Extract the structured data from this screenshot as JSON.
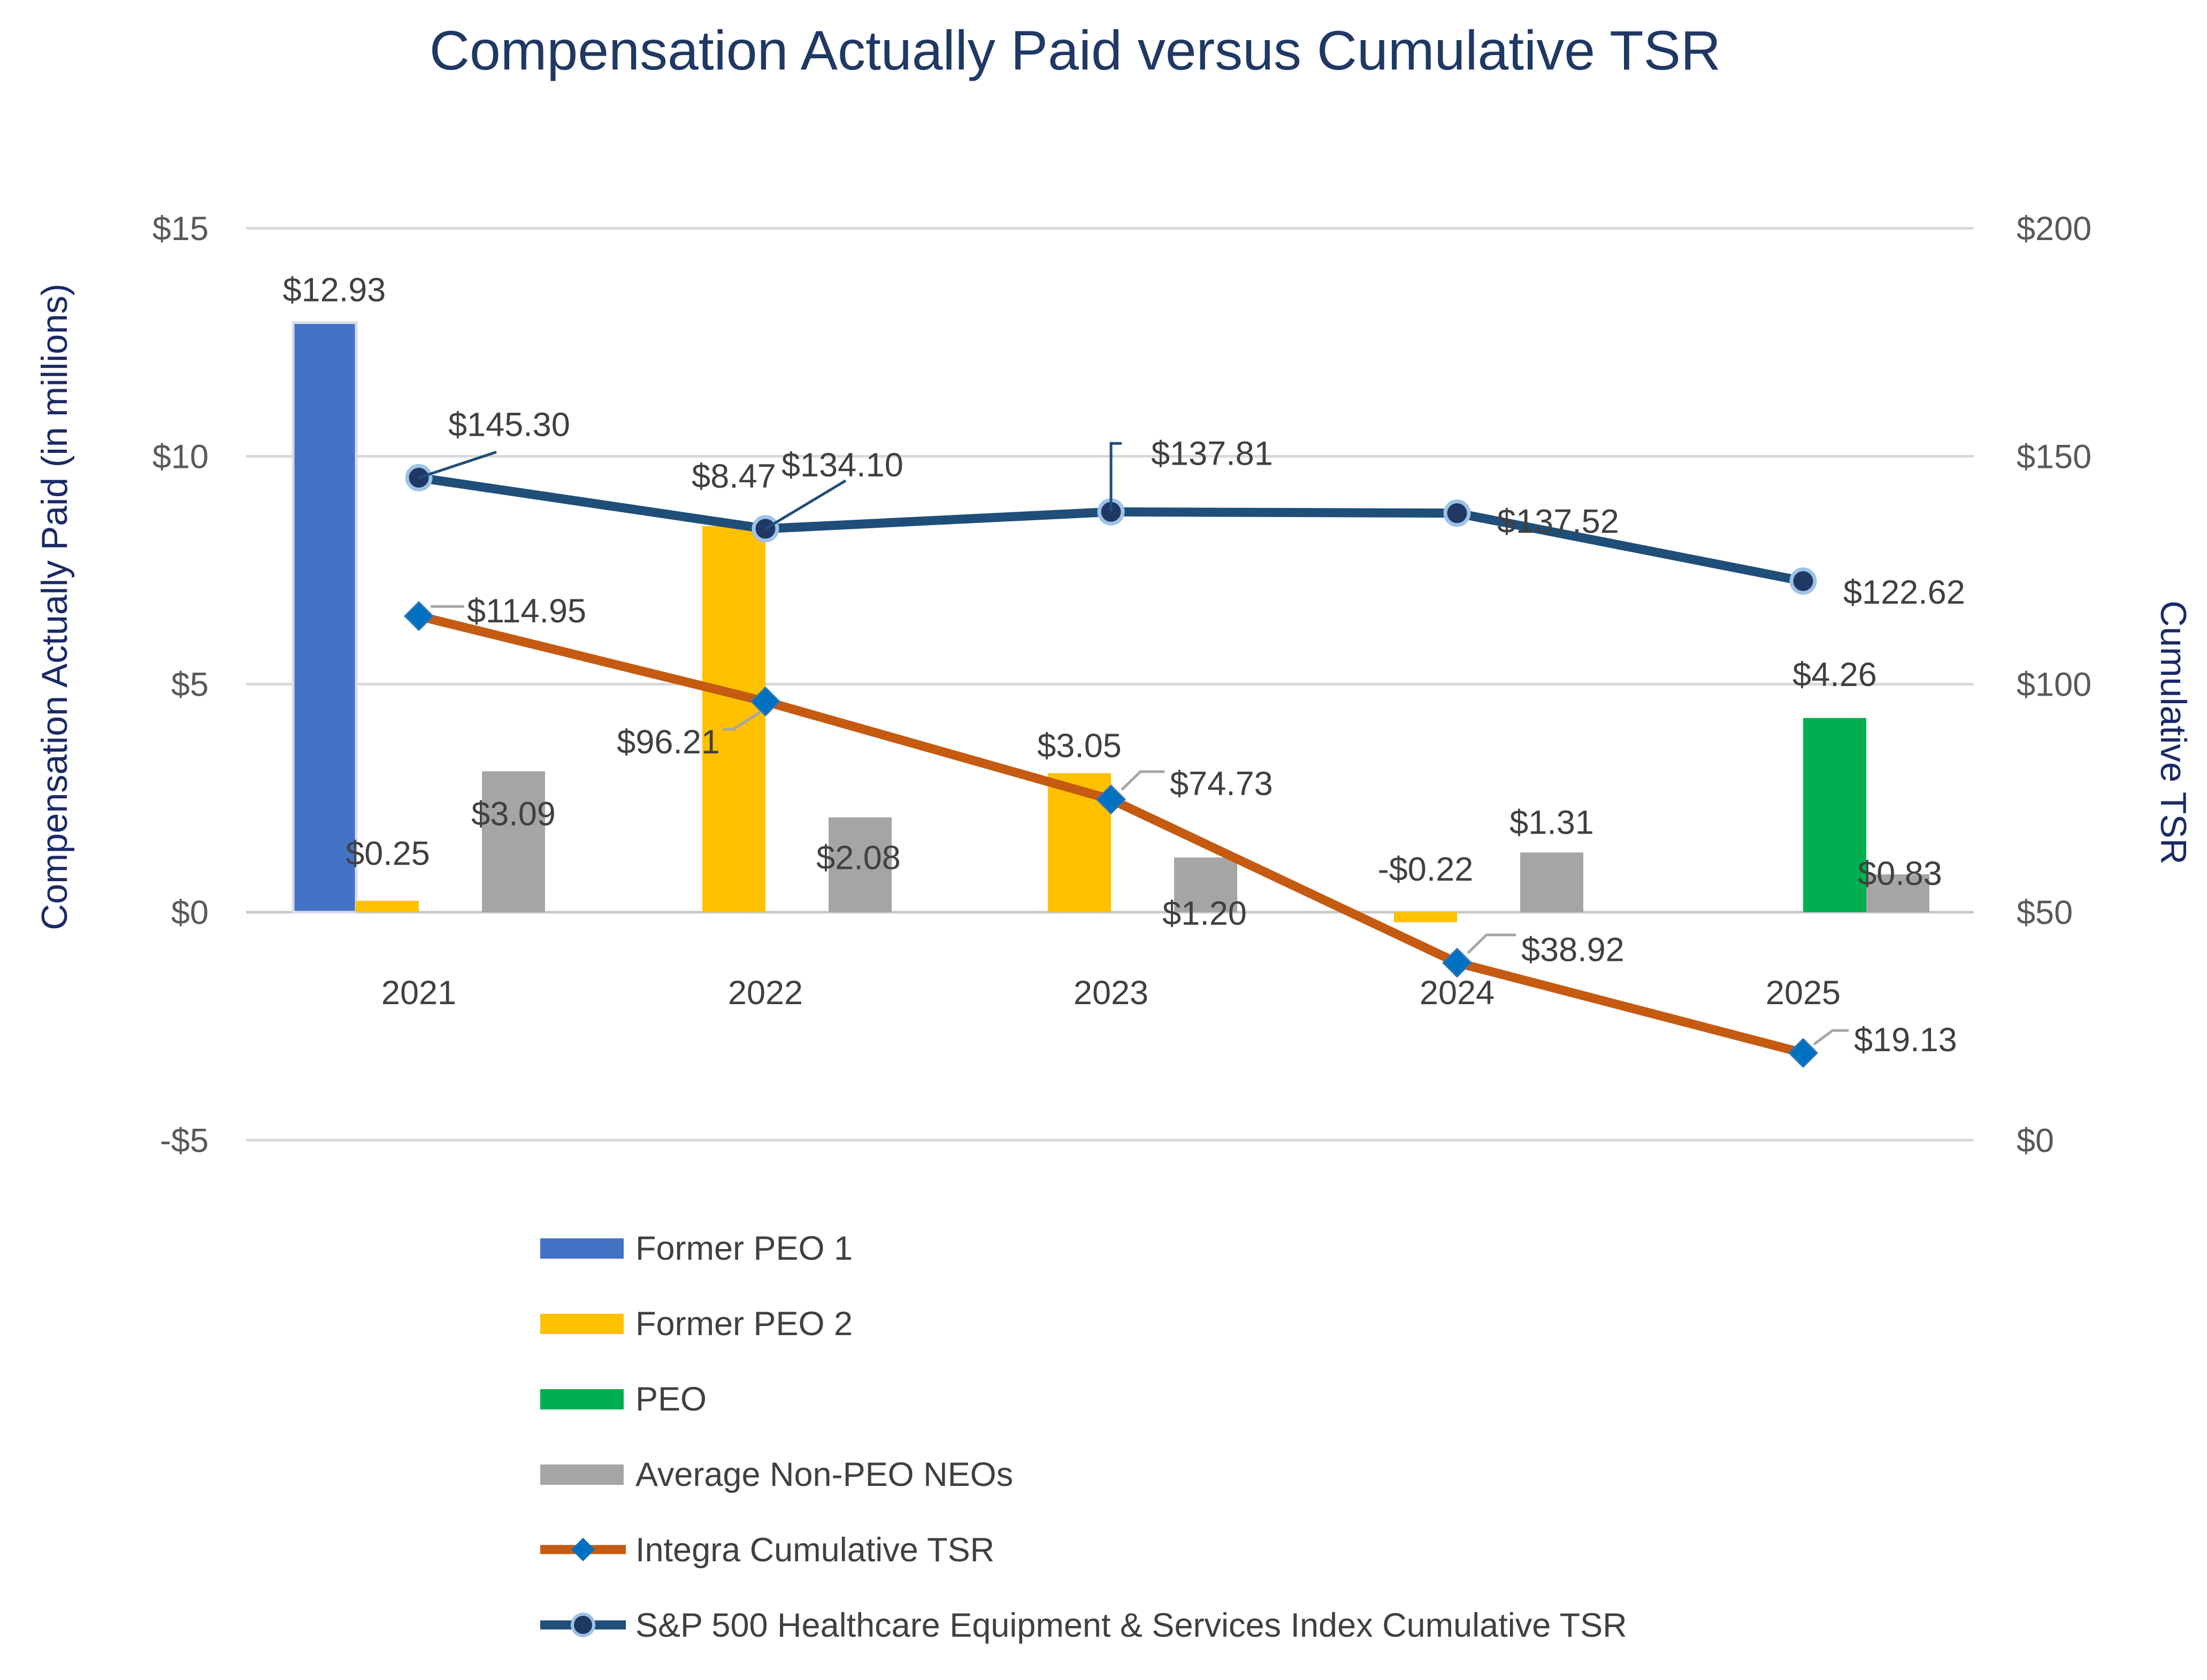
{
  "chart_data": {
    "type": "bar",
    "title": "Compensation Actually Paid versus Cumulative TSR",
    "ylabel": "Compensation Actually Paid (in millions)",
    "y2label": "Cumulative TSR",
    "categories": [
      "2021",
      "2022",
      "2023",
      "2024",
      "2025"
    ],
    "ylim": [
      -5,
      15
    ],
    "y_ticks": [
      "-5",
      "$0",
      "$5",
      "$10",
      "$15"
    ],
    "y_tick_labels": [
      "-$5",
      "$0",
      "$5",
      "$10",
      "$15"
    ],
    "y2lim": [
      0,
      200
    ],
    "y2_tick_labels": [
      "$0",
      "$50",
      "$100",
      "$150",
      "$200"
    ],
    "grid": true,
    "legend_position": "bottom",
    "bar_series": [
      {
        "name": "Former PEO 1",
        "color": "#4472c4",
        "values": [
          12.93,
          null,
          null,
          null,
          null
        ],
        "labels": [
          "$12.93",
          "",
          "",
          "",
          ""
        ]
      },
      {
        "name": "Former PEO 2",
        "color": "#ffc000",
        "values": [
          0.25,
          8.47,
          3.05,
          -0.22,
          null
        ],
        "labels": [
          "$0.25",
          "$8.47",
          "$3.05",
          "-$0.22",
          ""
        ]
      },
      {
        "name": "PEO",
        "color": "#00b050",
        "values": [
          null,
          null,
          null,
          null,
          4.26
        ],
        "labels": [
          "",
          "",
          "",
          "",
          "$4.26"
        ]
      },
      {
        "name": "Average Non-PEO NEOs",
        "color": "#a5a5a5",
        "values": [
          3.09,
          2.08,
          1.2,
          1.31,
          0.83
        ],
        "labels": [
          "$3.09",
          "$2.08",
          "$1.20",
          "$1.31",
          "$0.83"
        ]
      }
    ],
    "line_series": [
      {
        "name": "Integra Cumulative TSR",
        "axis": "secondary",
        "line_color": "#c55a11",
        "marker": "diamond",
        "marker_color": "#0070c0",
        "values": [
          114.95,
          96.21,
          74.73,
          38.92,
          19.13
        ],
        "labels": [
          "$114.95",
          "$96.21",
          "$74.73",
          "$38.92",
          "$19.13"
        ]
      },
      {
        "name": "S&P 500 Healthcare Equipment & Services Index Cumulative TSR",
        "axis": "secondary",
        "line_color": "#1f4e79",
        "marker": "circle",
        "marker_color": "#1f3864",
        "values": [
          145.3,
          134.1,
          137.81,
          137.52,
          122.62
        ],
        "labels": [
          "$145.30",
          "$134.10",
          "$137.81",
          "$137.52",
          "$122.62"
        ]
      }
    ]
  }
}
